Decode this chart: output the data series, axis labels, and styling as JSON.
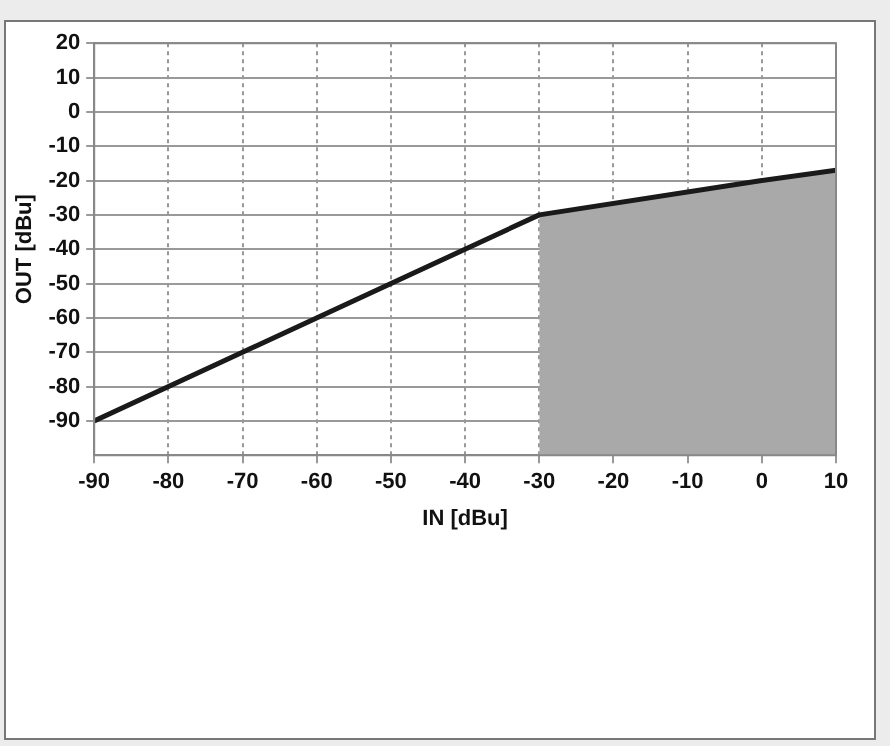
{
  "chart_data": {
    "type": "line",
    "xlabel": "IN [dBu]",
    "ylabel": "OUT [dBu]",
    "series": [
      {
        "color": "#1a1a1a",
        "x": [
          -90,
          -30,
          0,
          10
        ],
        "values": [
          -90,
          -30,
          -20,
          -17
        ],
        "lower": [
          null,
          -100,
          -100,
          -100
        ],
        "upper": [
          null,
          -30,
          -20,
          -17
        ]
      }
    ],
    "xlim": [
      -90,
      10
    ],
    "xticks": [
      -90,
      -80,
      -70,
      -60,
      -50,
      -40,
      -30,
      -20,
      -10,
      0,
      10
    ],
    "ylim": [
      -100,
      20
    ],
    "yticks": [
      -90,
      -80,
      -70,
      -60,
      -50,
      -40,
      -30,
      -20,
      -10,
      0,
      10,
      20
    ],
    "grid": true,
    "legend": false,
    "marker": "none",
    "line_style": "solid"
  }
}
